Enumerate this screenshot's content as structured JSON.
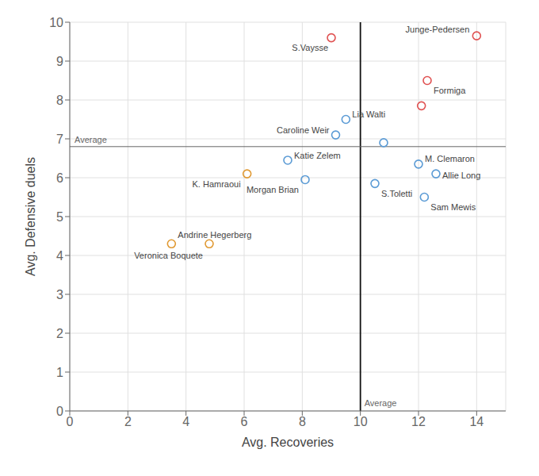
{
  "chart_data": {
    "type": "scatter",
    "xlabel": "Avg. Recoveries",
    "ylabel": "Avg. Defensive duels",
    "x": [
      9.0,
      14.0,
      12.3,
      12.1,
      9.5,
      9.15,
      10.8,
      7.5,
      8.1,
      10.5,
      12.0,
      12.6,
      12.2,
      6.1,
      3.5,
      4.8
    ],
    "values": [
      9.6,
      9.65,
      8.5,
      7.85,
      7.5,
      7.1,
      6.9,
      6.45,
      5.95,
      5.85,
      6.35,
      6.1,
      5.5,
      6.1,
      4.3,
      4.3
    ],
    "point_labels": [
      "S.Vaysse",
      "Junge-Pedersen",
      "Formiga",
      null,
      "Lia Walti",
      "Caroline Weir",
      null,
      "Katie Zelem",
      "Morgan Brian",
      "S.Toletti",
      "M. Clemaron",
      "Allie Long",
      "Sam Mewis",
      "K. Hamraoui",
      "Andrine Hegerberg",
      "Veronica Boquete"
    ],
    "colors": [
      "#e05252",
      "#e05252",
      "#e05252",
      "#e05252",
      "#5b9bd5",
      "#5b9bd5",
      "#5b9bd5",
      "#5b9bd5",
      "#5b9bd5",
      "#5b9bd5",
      "#5b9bd5",
      "#5b9bd5",
      "#5b9bd5",
      "#e09932",
      "#e09932",
      "#e09932"
    ],
    "marker": "circle",
    "annotations": [
      {
        "type": "vline",
        "x": 10.0,
        "label": "Average",
        "color": "#111111"
      },
      {
        "type": "hline",
        "y": 6.8,
        "label": "Average",
        "color": "#666666"
      }
    ],
    "xlim": [
      0,
      15
    ],
    "ylim": [
      0,
      10
    ],
    "xticks": [
      0,
      2,
      4,
      6,
      8,
      10,
      12,
      14
    ],
    "yticks": [
      0,
      1,
      2,
      3,
      4,
      5,
      6,
      7,
      8,
      9,
      10
    ],
    "grid": true
  }
}
